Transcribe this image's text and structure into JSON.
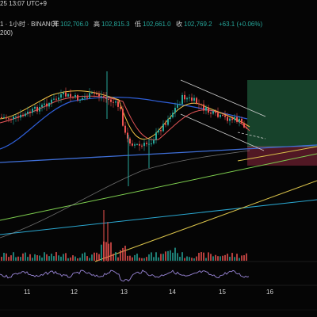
{
  "header": {
    "timestamp": "25 13:07 UTC+9",
    "symbol_line": "1 · 1小时 · BINANCE",
    "open_label": "开",
    "open": "102,706.0",
    "high_label": "高",
    "high": "102,815.3",
    "low_label": "低",
    "low": "102,661.0",
    "close_label": "收",
    "close": "102,769.2",
    "change": "+63.1 (+0.06%)",
    "indicator": "200)"
  },
  "x_axis": {
    "labels": [
      "11",
      "12",
      "13",
      "14",
      "15",
      "16"
    ]
  },
  "colors": {
    "up": "#26a69a",
    "down": "#ef5350",
    "ma_yellow": "#f6c445",
    "ma_red": "#e45557",
    "ma_blue": "#2f5fd8",
    "long_green": "#1e5a3a",
    "long_red": "#6a1f2c",
    "trend_blue": "#3f6fd8",
    "trend_green": "#7ecf4f",
    "trend_yellow": "#d9c24a",
    "trend_cyan": "#2aa7d0"
  }
}
